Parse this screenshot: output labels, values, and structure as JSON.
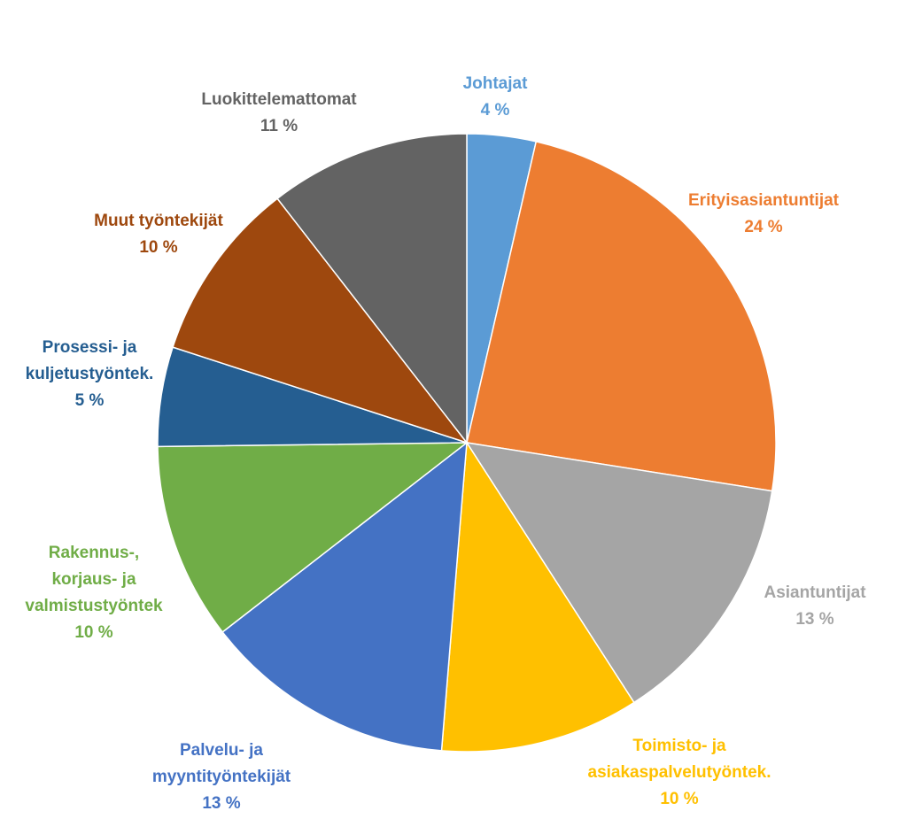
{
  "chart_data": {
    "type": "pie",
    "title": "",
    "start_angle_deg": 0,
    "direction": "clockwise",
    "slices": [
      {
        "label_lines": [
          "Johtajat"
        ],
        "value_label": "4 %",
        "value": 3.6,
        "color": "#5B9BD5"
      },
      {
        "label_lines": [
          "Erityisasiantuntijat"
        ],
        "value_label": "24 %",
        "value": 23.9,
        "color": "#ED7D31"
      },
      {
        "label_lines": [
          "Asiantuntijat"
        ],
        "value_label": "13 %",
        "value": 13.4,
        "color": "#A5A5A5"
      },
      {
        "label_lines": [
          "Toimisto- ja",
          "asiakaspalvelutyöntek."
        ],
        "value_label": "10 %",
        "value": 10.4,
        "color": "#FFC000"
      },
      {
        "label_lines": [
          "Palvelu- ja",
          "myyntityöntekijät"
        ],
        "value_label": "13 %",
        "value": 13.2,
        "color": "#4472C4"
      },
      {
        "label_lines": [
          "Rakennus-,",
          "korjaus- ja",
          "valmistustyöntek"
        ],
        "value_label": "10 %",
        "value": 10.3,
        "color": "#70AD47"
      },
      {
        "label_lines": [
          "Prosessi- ja",
          "kuljetustyöntek."
        ],
        "value_label": "5 %",
        "value": 5.2,
        "color": "#255E91"
      },
      {
        "label_lines": [
          "Muut työntekijät"
        ],
        "value_label": "10 %",
        "value": 9.5,
        "color": "#9E480E"
      },
      {
        "label_lines": [
          "Luokittelemattomat"
        ],
        "value_label": "11 %",
        "value": 10.5,
        "color": "#636363"
      }
    ]
  }
}
